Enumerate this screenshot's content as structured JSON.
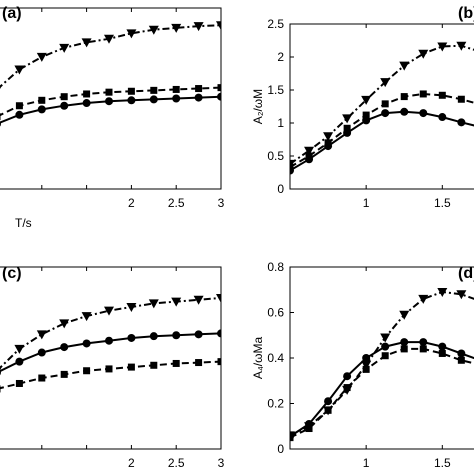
{
  "chart_data": [
    {
      "panel": "(a)",
      "type": "line",
      "xlabel": "T/s",
      "ylabel": "",
      "xlim": [
        0.5,
        3
      ],
      "ylim": [
        0,
        1
      ],
      "xticks": [
        1,
        1.5,
        2,
        2.5,
        3
      ],
      "xtick_labels": [
        "",
        "",
        "2",
        "2.5",
        "3"
      ],
      "yticks": [],
      "ytick_labels": [],
      "series": [
        {
          "marker": "triangle-down",
          "dash": "dashdot",
          "points": [
            [
              0.5,
              0.55
            ],
            [
              0.75,
              0.66
            ],
            [
              1,
              0.73
            ],
            [
              1.25,
              0.78
            ],
            [
              1.5,
              0.81
            ],
            [
              1.75,
              0.83
            ],
            [
              2,
              0.86
            ],
            [
              2.25,
              0.88
            ],
            [
              2.5,
              0.89
            ],
            [
              2.75,
              0.9
            ],
            [
              3,
              0.905
            ]
          ]
        },
        {
          "marker": "square",
          "dash": "dashed",
          "points": [
            [
              0.5,
              0.4
            ],
            [
              0.75,
              0.46
            ],
            [
              1,
              0.49
            ],
            [
              1.25,
              0.51
            ],
            [
              1.5,
              0.525
            ],
            [
              1.75,
              0.535
            ],
            [
              2,
              0.54
            ],
            [
              2.25,
              0.545
            ],
            [
              2.5,
              0.55
            ],
            [
              2.75,
              0.555
            ],
            [
              3,
              0.56
            ]
          ]
        },
        {
          "marker": "circle",
          "dash": "solid",
          "points": [
            [
              0.5,
              0.36
            ],
            [
              0.75,
              0.41
            ],
            [
              1,
              0.44
            ],
            [
              1.25,
              0.46
            ],
            [
              1.5,
              0.475
            ],
            [
              1.75,
              0.485
            ],
            [
              2,
              0.49
            ],
            [
              2.25,
              0.495
            ],
            [
              2.5,
              0.5
            ],
            [
              2.75,
              0.505
            ],
            [
              3,
              0.51
            ]
          ]
        }
      ]
    },
    {
      "panel": "(b)",
      "type": "line",
      "xlabel": "",
      "ylabel": "A₂/ωM",
      "xlim": [
        0.5,
        1.8
      ],
      "ylim": [
        0,
        2.5
      ],
      "xticks": [
        1,
        1.5
      ],
      "xtick_labels": [
        "1",
        "1.5"
      ],
      "yticks": [
        0,
        0.5,
        1,
        1.5,
        2,
        2.5
      ],
      "ytick_labels": [
        "0",
        "0.5",
        "1",
        "1.5",
        "2",
        "2.5"
      ],
      "series": [
        {
          "marker": "triangle-down",
          "dash": "dashdot",
          "points": [
            [
              0.5,
              0.38
            ],
            [
              0.625,
              0.58
            ],
            [
              0.75,
              0.8
            ],
            [
              0.875,
              1.07
            ],
            [
              1,
              1.35
            ],
            [
              1.125,
              1.62
            ],
            [
              1.25,
              1.87
            ],
            [
              1.375,
              2.05
            ],
            [
              1.5,
              2.16
            ],
            [
              1.625,
              2.17
            ],
            [
              1.75,
              2.08
            ],
            [
              1.8,
              2.02
            ]
          ]
        },
        {
          "marker": "square",
          "dash": "dashed",
          "points": [
            [
              0.5,
              0.33
            ],
            [
              0.625,
              0.5
            ],
            [
              0.75,
              0.7
            ],
            [
              0.875,
              0.92
            ],
            [
              1,
              1.12
            ],
            [
              1.125,
              1.29
            ],
            [
              1.25,
              1.4
            ],
            [
              1.375,
              1.44
            ],
            [
              1.5,
              1.42
            ],
            [
              1.625,
              1.36
            ],
            [
              1.75,
              1.28
            ],
            [
              1.8,
              1.25
            ]
          ]
        },
        {
          "marker": "circle",
          "dash": "solid",
          "points": [
            [
              0.5,
              0.28
            ],
            [
              0.625,
              0.45
            ],
            [
              0.75,
              0.65
            ],
            [
              0.875,
              0.85
            ],
            [
              1,
              1.04
            ],
            [
              1.125,
              1.15
            ],
            [
              1.25,
              1.17
            ],
            [
              1.375,
              1.15
            ],
            [
              1.5,
              1.09
            ],
            [
              1.625,
              1.01
            ],
            [
              1.75,
              0.94
            ],
            [
              1.8,
              0.92
            ]
          ]
        }
      ]
    },
    {
      "panel": "(c)",
      "type": "line",
      "xlabel": "T/s",
      "ylabel": "",
      "xlim": [
        0.5,
        3
      ],
      "ylim": [
        0,
        1
      ],
      "xticks": [
        1,
        1.5,
        2,
        2.5,
        3
      ],
      "xtick_labels": [
        "",
        "",
        "2",
        "2.5",
        "3"
      ],
      "yticks": [],
      "ytick_labels": [],
      "series": [
        {
          "marker": "triangle-down",
          "dash": "dashdot",
          "points": [
            [
              0.5,
              0.43
            ],
            [
              0.75,
              0.55
            ],
            [
              1,
              0.63
            ],
            [
              1.25,
              0.69
            ],
            [
              1.5,
              0.73
            ],
            [
              1.75,
              0.76
            ],
            [
              2,
              0.78
            ],
            [
              2.25,
              0.8
            ],
            [
              2.5,
              0.81
            ],
            [
              2.75,
              0.82
            ],
            [
              3,
              0.83
            ]
          ]
        },
        {
          "marker": "circle",
          "dash": "solid",
          "points": [
            [
              0.5,
              0.42
            ],
            [
              0.75,
              0.48
            ],
            [
              1,
              0.53
            ],
            [
              1.25,
              0.56
            ],
            [
              1.5,
              0.58
            ],
            [
              1.75,
              0.595
            ],
            [
              2,
              0.61
            ],
            [
              2.25,
              0.62
            ],
            [
              2.5,
              0.625
            ],
            [
              2.75,
              0.63
            ],
            [
              3,
              0.635
            ]
          ]
        },
        {
          "marker": "square",
          "dash": "dashed",
          "points": [
            [
              0.5,
              0.33
            ],
            [
              0.75,
              0.36
            ],
            [
              1,
              0.39
            ],
            [
              1.25,
              0.41
            ],
            [
              1.5,
              0.43
            ],
            [
              1.75,
              0.44
            ],
            [
              2,
              0.45
            ],
            [
              2.25,
              0.46
            ],
            [
              2.5,
              0.47
            ],
            [
              2.75,
              0.475
            ],
            [
              3,
              0.48
            ]
          ]
        }
      ]
    },
    {
      "panel": "(d)",
      "type": "line",
      "xlabel": "",
      "ylabel": "A₄/ωMa",
      "xlim": [
        0.5,
        1.8
      ],
      "ylim": [
        0,
        0.8
      ],
      "xticks": [
        1,
        1.5
      ],
      "xtick_labels": [
        "1",
        "1.5"
      ],
      "yticks": [
        0,
        0.2,
        0.4,
        0.6,
        0.8
      ],
      "ytick_labels": [
        "0",
        "0.2",
        "0.4",
        "0.6",
        "0.8"
      ],
      "series": [
        {
          "marker": "triangle-down",
          "dash": "dashdot",
          "points": [
            [
              0.5,
              0.06
            ],
            [
              0.625,
              0.1
            ],
            [
              0.75,
              0.17
            ],
            [
              0.875,
              0.26
            ],
            [
              1,
              0.37
            ],
            [
              1.125,
              0.49
            ],
            [
              1.25,
              0.59
            ],
            [
              1.375,
              0.66
            ],
            [
              1.5,
              0.69
            ],
            [
              1.625,
              0.68
            ],
            [
              1.75,
              0.65
            ],
            [
              1.8,
              0.63
            ]
          ]
        },
        {
          "marker": "circle",
          "dash": "solid",
          "points": [
            [
              0.5,
              0.055
            ],
            [
              0.625,
              0.11
            ],
            [
              0.75,
              0.21
            ],
            [
              0.875,
              0.32
            ],
            [
              1,
              0.4
            ],
            [
              1.125,
              0.45
            ],
            [
              1.25,
              0.47
            ],
            [
              1.375,
              0.47
            ],
            [
              1.5,
              0.45
            ],
            [
              1.625,
              0.42
            ],
            [
              1.75,
              0.39
            ],
            [
              1.8,
              0.38
            ]
          ]
        },
        {
          "marker": "square",
          "dash": "dashed",
          "points": [
            [
              0.5,
              0.05
            ],
            [
              0.625,
              0.09
            ],
            [
              0.75,
              0.17
            ],
            [
              0.875,
              0.27
            ],
            [
              1,
              0.35
            ],
            [
              1.125,
              0.41
            ],
            [
              1.25,
              0.44
            ],
            [
              1.375,
              0.44
            ],
            [
              1.5,
              0.42
            ],
            [
              1.625,
              0.39
            ],
            [
              1.75,
              0.37
            ],
            [
              1.8,
              0.36
            ]
          ]
        }
      ]
    }
  ]
}
